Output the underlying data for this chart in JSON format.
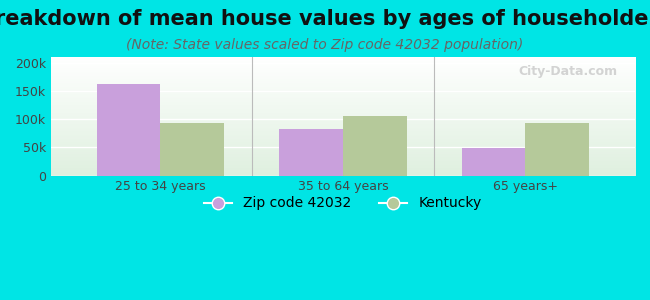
{
  "title": "Breakdown of mean house values by ages of householders",
  "subtitle": "(Note: State values scaled to Zip code 42032 population)",
  "categories": [
    "25 to 34 years",
    "35 to 64 years",
    "65 years+"
  ],
  "zip_values": [
    162000,
    83000,
    49000
  ],
  "ky_values": [
    93000,
    105000,
    93000
  ],
  "zip_color": "#c9a0dc",
  "ky_color": "#b5c99a",
  "background_outer": "#00e5e5",
  "ylim": [
    0,
    210000
  ],
  "yticks": [
    0,
    50000,
    100000,
    150000,
    200000
  ],
  "ytick_labels": [
    "0",
    "50k",
    "100k",
    "150k",
    "200k"
  ],
  "legend_labels": [
    "Zip code 42032",
    "Kentucky"
  ],
  "bar_width": 0.35,
  "title_fontsize": 15,
  "subtitle_fontsize": 10,
  "tick_fontsize": 9,
  "legend_fontsize": 10,
  "watermark": "City-Data.com"
}
